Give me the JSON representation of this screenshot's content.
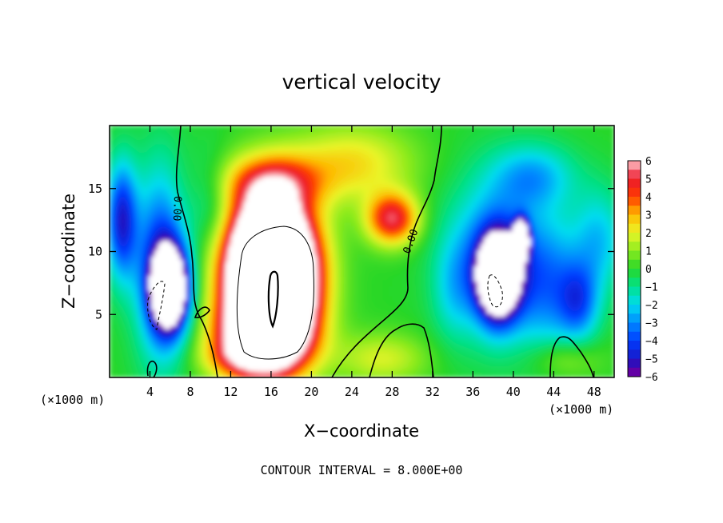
{
  "chart_data": {
    "type": "heatmap",
    "title": "vertical velocity",
    "xlabel": "X−coordinate",
    "ylabel": "Z−coordinate",
    "x_unit": "(×1000 m)",
    "y_unit": "(×1000 m)",
    "xlim": [
      0,
      50
    ],
    "ylim": [
      0,
      20
    ],
    "x_ticks": [
      4,
      8,
      12,
      16,
      20,
      24,
      28,
      32,
      36,
      40,
      44,
      48
    ],
    "y_ticks": [
      5,
      10,
      15
    ],
    "x_tick_labels": [
      "4",
      "8",
      "12",
      "16",
      "20",
      "24",
      "28",
      "32",
      "36",
      "40",
      "44",
      "48"
    ],
    "y_tick_labels": [
      "5",
      "10",
      "15"
    ],
    "colorbar": {
      "min": -6,
      "max": 6,
      "labels": [
        "6",
        "5",
        "4",
        "3",
        "2",
        "1",
        "0",
        "−1",
        "−2",
        "−3",
        "−4",
        "−5",
        "−6"
      ]
    },
    "contour_labels": [
      "0.00",
      "0.00"
    ],
    "annotation": "CONTOUR INTERVAL = 8.000E+00",
    "field_features": [
      {
        "kind": "updraft",
        "x": 16,
        "z": 7.5,
        "peak": 40
      },
      {
        "kind": "updraft",
        "x": 28,
        "z": 12.5,
        "peak": 4
      },
      {
        "kind": "downdraft",
        "x": 6,
        "z": 7.0,
        "peak": -12
      },
      {
        "kind": "downdraft",
        "x": 38,
        "z": 8.0,
        "peak": -12
      },
      {
        "kind": "downdraft",
        "x": 41,
        "z": 11.0,
        "peak": -8
      },
      {
        "kind": "downdraft",
        "x": 1,
        "z": 12.5,
        "peak": -5
      }
    ]
  },
  "colors": {
    "axis": "#000000",
    "background": "#ffffff",
    "saturation_high": "#ffffff",
    "saturation_low": "#ffffff"
  }
}
